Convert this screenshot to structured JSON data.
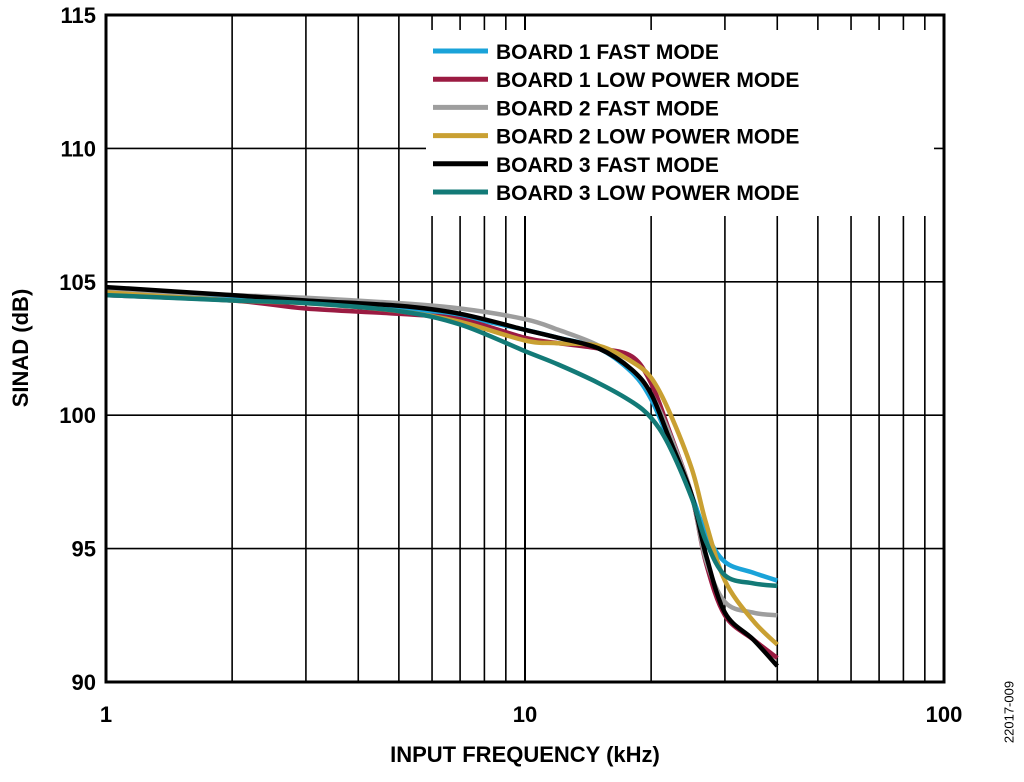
{
  "chart_data": {
    "type": "line",
    "xlabel": "INPUT FREQUENCY (kHz)",
    "ylabel": "SINAD (dB)",
    "x_scale": "log",
    "xlim": [
      1,
      100
    ],
    "ylim": [
      90,
      115
    ],
    "x_ticks": [
      1,
      10,
      100
    ],
    "x_tick_labels": [
      "1",
      "10",
      "100"
    ],
    "y_ticks": [
      90,
      95,
      100,
      105,
      110,
      115
    ],
    "y_tick_labels": [
      "90",
      "95",
      "100",
      "105",
      "110",
      "115"
    ],
    "grid": true,
    "legend_position": "top-right",
    "series": [
      {
        "name": "BOARD 1 FAST MODE",
        "color": "#1aa3d9",
        "x": [
          1,
          2,
          3,
          5,
          7,
          10,
          12,
          15,
          18,
          20,
          22,
          25,
          27,
          30,
          35,
          40
        ],
        "y": [
          104.6,
          104.4,
          104.3,
          104.0,
          103.7,
          103.2,
          102.9,
          102.5,
          101.6,
          100.6,
          99.1,
          97.0,
          95.6,
          94.5,
          94.1,
          93.8
        ]
      },
      {
        "name": "BOARD 1 LOW POWER MODE",
        "color": "#9b1b42",
        "x": [
          1,
          2,
          3,
          5,
          7,
          10,
          12,
          15,
          18,
          20,
          22,
          25,
          27,
          30,
          35,
          40
        ],
        "y": [
          104.5,
          104.3,
          104.0,
          103.8,
          103.6,
          102.9,
          102.7,
          102.5,
          102.2,
          101.2,
          99.5,
          97.0,
          94.5,
          92.5,
          91.6,
          90.9
        ]
      },
      {
        "name": "BOARD 2 FAST MODE",
        "color": "#9e9e9e",
        "x": [
          1,
          2,
          3,
          5,
          7,
          10,
          12,
          15,
          18,
          20,
          22,
          25,
          27,
          30,
          35,
          40
        ],
        "y": [
          104.7,
          104.5,
          104.4,
          104.2,
          104.0,
          103.6,
          103.2,
          102.6,
          101.7,
          100.8,
          99.4,
          97.0,
          94.6,
          93.0,
          92.6,
          92.5
        ]
      },
      {
        "name": "BOARD 2 LOW POWER MODE",
        "color": "#c9a032",
        "x": [
          1,
          2,
          3,
          5,
          7,
          10,
          12,
          15,
          18,
          20,
          22,
          25,
          27,
          30,
          35,
          40
        ],
        "y": [
          104.6,
          104.3,
          104.2,
          103.9,
          103.5,
          102.8,
          102.7,
          102.6,
          102.0,
          101.4,
          100.2,
          98.0,
          96.0,
          93.8,
          92.3,
          91.4
        ]
      },
      {
        "name": "BOARD 3 FAST MODE",
        "color": "#000000",
        "x": [
          1,
          2,
          3,
          5,
          7,
          10,
          12,
          15,
          18,
          20,
          22,
          25,
          27,
          30,
          35,
          40
        ],
        "y": [
          104.8,
          104.5,
          104.3,
          104.1,
          103.8,
          103.2,
          102.9,
          102.5,
          101.7,
          100.8,
          99.2,
          97.0,
          94.8,
          92.6,
          91.6,
          90.6
        ]
      },
      {
        "name": "BOARD 3 LOW POWER MODE",
        "color": "#137a77",
        "x": [
          1,
          2,
          3,
          5,
          7,
          10,
          12,
          15,
          18,
          20,
          22,
          25,
          27,
          30,
          35,
          40
        ],
        "y": [
          104.5,
          104.3,
          104.2,
          103.9,
          103.4,
          102.4,
          101.9,
          101.2,
          100.5,
          99.9,
          98.9,
          96.9,
          95.3,
          94.0,
          93.7,
          93.6
        ]
      }
    ]
  },
  "figure_id": "22017-009"
}
